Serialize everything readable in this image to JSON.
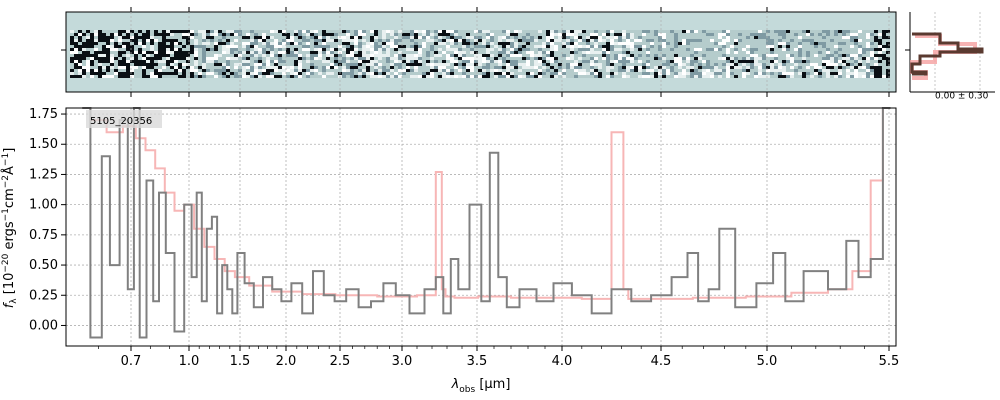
{
  "chart_data": {
    "type": "line",
    "object_id": "5105_20356",
    "xlabel_prefix": "λ",
    "xlabel_sub": "obs",
    "xlabel_unit": "[μm]",
    "ylabel": "f_λ [10^{-20} ergs^{-1} cm^{-2} Å^{-1}]",
    "ylabel_parts": {
      "main": "f",
      "sub": "λ",
      "pre": " [10",
      "exp1": "−20",
      "mid": " ergs",
      "exp2": "−1",
      "mid2": "cm",
      "exp3": "−2",
      "mid3": "Å",
      "exp4": "−1",
      "post": "]"
    },
    "x_ticks": [
      "0.7",
      "1.0",
      "1.5",
      "2.0",
      "2.5",
      "3.0",
      "3.5",
      "4.0",
      "4.5",
      "5.0",
      "5.5"
    ],
    "x_tick_values": [
      0.7,
      1.0,
      1.5,
      2.0,
      2.5,
      3.0,
      3.5,
      4.0,
      4.5,
      5.0,
      5.5
    ],
    "y_ticks": [
      "0.00",
      "0.25",
      "0.50",
      "0.75",
      "1.00",
      "1.25",
      "1.50",
      "1.75"
    ],
    "y_tick_values": [
      0.0,
      0.25,
      0.5,
      0.75,
      1.0,
      1.25,
      1.5,
      1.75
    ],
    "ylim": [
      -0.17,
      1.8
    ],
    "xlim": [
      0.5,
      5.52
    ],
    "grid": true,
    "side_panel_label": "0.00 ± 0.30",
    "series": [
      {
        "color": "#808080",
        "x": [
          0.55,
          0.6,
          0.62,
          0.65,
          0.68,
          0.7,
          0.73,
          0.76,
          0.8,
          0.83,
          0.86,
          0.9,
          0.95,
          1.0,
          1.05,
          1.1,
          1.15,
          1.2,
          1.25,
          1.3,
          1.35,
          1.4,
          1.45,
          1.5,
          1.6,
          1.7,
          1.8,
          1.9,
          2.0,
          2.1,
          2.2,
          2.3,
          2.4,
          2.5,
          2.6,
          2.7,
          2.8,
          2.9,
          3.0,
          3.1,
          3.2,
          3.25,
          3.3,
          3.35,
          3.4,
          3.5,
          3.55,
          3.6,
          3.65,
          3.7,
          3.8,
          3.9,
          4.0,
          4.1,
          4.2,
          4.3,
          4.4,
          4.5,
          4.6,
          4.65,
          4.7,
          4.75,
          4.8,
          4.9,
          5.0,
          5.05,
          5.1,
          5.2,
          5.3,
          5.35,
          5.4,
          5.45,
          5.5
        ],
        "values": [
          1.8,
          -0.1,
          1.4,
          0.5,
          1.7,
          0.3,
          1.8,
          -0.1,
          1.2,
          0.2,
          1.1,
          0.6,
          -0.05,
          1.0,
          0.4,
          1.1,
          0.2,
          0.8,
          0.9,
          0.1,
          0.5,
          0.3,
          0.1,
          0.6,
          0.35,
          0.15,
          0.4,
          0.3,
          0.2,
          0.35,
          0.1,
          0.45,
          0.25,
          0.2,
          0.3,
          0.15,
          0.2,
          0.35,
          0.25,
          0.1,
          0.3,
          0.4,
          0.1,
          0.55,
          0.3,
          1.0,
          0.2,
          1.43,
          0.4,
          0.15,
          0.3,
          0.2,
          0.35,
          0.25,
          0.1,
          0.3,
          0.2,
          0.25,
          0.4,
          0.6,
          0.2,
          0.3,
          0.8,
          0.15,
          0.35,
          0.6,
          0.2,
          0.45,
          0.3,
          0.7,
          0.4,
          0.55,
          1.8
        ]
      },
      {
        "color": "#f7b6b6",
        "x": [
          0.55,
          0.6,
          0.65,
          0.7,
          0.75,
          0.8,
          0.85,
          0.9,
          0.95,
          1.0,
          1.1,
          1.2,
          1.3,
          1.4,
          1.5,
          1.7,
          2.0,
          2.3,
          2.6,
          3.0,
          3.2,
          3.25,
          3.28,
          3.3,
          3.4,
          3.6,
          3.8,
          4.0,
          4.2,
          4.3,
          4.32,
          4.35,
          4.5,
          4.8,
          5.0,
          5.2,
          5.3,
          5.4,
          5.45,
          5.5
        ],
        "values": [
          1.8,
          1.7,
          1.6,
          1.65,
          1.55,
          1.45,
          1.3,
          1.1,
          0.95,
          1.0,
          0.8,
          0.65,
          0.55,
          0.45,
          0.4,
          0.33,
          0.28,
          0.26,
          0.25,
          0.24,
          0.25,
          1.27,
          0.3,
          0.24,
          0.23,
          0.24,
          0.23,
          0.23,
          0.22,
          1.6,
          0.3,
          0.22,
          0.22,
          0.23,
          0.24,
          0.27,
          0.3,
          0.45,
          1.2,
          1.8
        ]
      }
    ],
    "colors": {
      "data": "#808080",
      "model": "#f7b6b6",
      "model_side": "#f5a0a0",
      "hist": "#5a3a30",
      "spec2d_bg": "#c4dada",
      "grid": "#b0b0b0"
    }
  }
}
